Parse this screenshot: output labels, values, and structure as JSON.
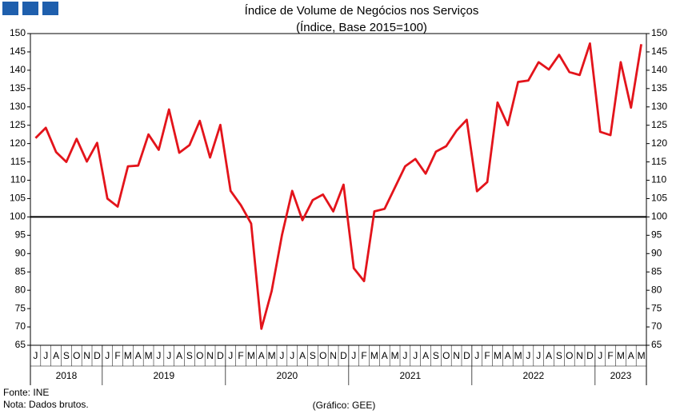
{
  "chart_data": {
    "type": "line",
    "title": "Índice de Volume de Negócios nos Serviços",
    "subtitle": "(Índice, Base 2015=100)",
    "groups": [
      {
        "label": "2018",
        "categories": [
          "J",
          "J",
          "A",
          "S",
          "O",
          "N",
          "D"
        ]
      },
      {
        "label": "2019",
        "categories": [
          "J",
          "F",
          "M",
          "A",
          "M",
          "J",
          "J",
          "A",
          "S",
          "O",
          "N",
          "D"
        ]
      },
      {
        "label": "2020",
        "categories": [
          "J",
          "F",
          "M",
          "A",
          "M",
          "J",
          "J",
          "A",
          "S",
          "O",
          "N",
          "D"
        ]
      },
      {
        "label": "2021",
        "categories": [
          "J",
          "F",
          "M",
          "A",
          "M",
          "J",
          "J",
          "A",
          "S",
          "O",
          "N",
          "D"
        ]
      },
      {
        "label": "2022",
        "categories": [
          "J",
          "F",
          "M",
          "A",
          "M",
          "J",
          "J",
          "A",
          "S",
          "O",
          "N",
          "D"
        ]
      },
      {
        "label": "2023",
        "categories": [
          "J",
          "F",
          "M",
          "A",
          "M"
        ]
      }
    ],
    "series": [
      {
        "color": "#e3141b",
        "values": [
          121.5,
          124.3,
          117.7,
          115,
          121.3,
          115.1,
          120.2,
          105,
          102.8,
          113.8,
          114,
          122.5,
          118.3,
          129.3,
          117.5,
          119.6,
          126.2,
          116.2,
          125.1,
          107.1,
          103.2,
          98.2,
          69.5,
          79.8,
          95,
          107.1,
          99.1,
          104.6,
          106.1,
          101.5,
          108.8,
          86,
          82.5,
          101.5,
          102.2,
          108,
          113.8,
          115.8,
          111.8,
          117.8,
          119.3,
          123.5,
          126.5,
          107,
          109.5,
          131.2,
          125,
          136.8,
          137.2,
          142.2,
          140.2,
          144.2,
          139.5,
          138.7,
          147.3,
          123.2,
          122.3,
          142.2,
          129.8,
          147.1
        ]
      }
    ],
    "ylim": [
      65,
      150
    ],
    "yticks": [
      65,
      70,
      75,
      80,
      85,
      90,
      95,
      100,
      105,
      110,
      115,
      120,
      125,
      130,
      135,
      140,
      145,
      150
    ],
    "hline": 100,
    "source": "Fonte: INE",
    "note": "Nota: Dados brutos.",
    "credit": "(Gráfico: GEE)"
  }
}
